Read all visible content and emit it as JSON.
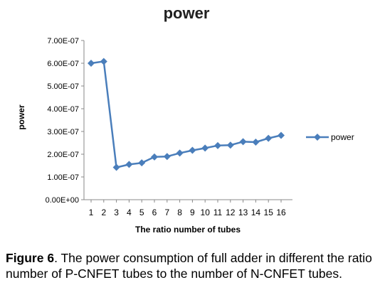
{
  "chart_data": {
    "type": "line",
    "title": "power",
    "xlabel": "The ratio number of tubes",
    "ylabel": "power",
    "x": [
      1,
      2,
      3,
      4,
      5,
      6,
      7,
      8,
      9,
      10,
      11,
      12,
      13,
      14,
      15,
      16
    ],
    "series": [
      {
        "name": "power",
        "values": [
          6e-07,
          6.08e-07,
          1.42e-07,
          1.55e-07,
          1.62e-07,
          1.88e-07,
          1.9e-07,
          2.05e-07,
          2.17e-07,
          2.27e-07,
          2.38e-07,
          2.4e-07,
          2.55e-07,
          2.53e-07,
          2.7e-07,
          2.83e-07
        ],
        "color": "#4a7ebb"
      }
    ],
    "ylim": [
      0,
      7e-07
    ],
    "yticks": [
      "0.00E+00",
      "1.00E-07",
      "2.00E-07",
      "3.00E-07",
      "4.00E-07",
      "5.00E-07",
      "6.00E-07",
      "7.00E-07"
    ],
    "xticks": [
      "1",
      "2",
      "3",
      "4",
      "5",
      "6",
      "7",
      "8",
      "9",
      "10",
      "11",
      "12",
      "13",
      "14",
      "15",
      "16"
    ],
    "legend_position": "right",
    "grid": false
  },
  "caption": {
    "label": "Figure 6",
    "text": ". The power consumption of full adder in different the ratio number of P-CNFET tubes to the number of N-CNFET tubes."
  }
}
